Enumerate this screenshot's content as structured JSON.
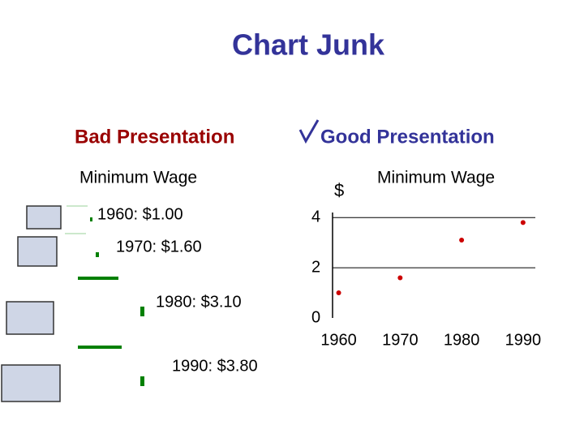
{
  "title": "Chart Junk",
  "bad": {
    "heading": "Bad Presentation",
    "subtitle": "Minimum Wage",
    "items": [
      "1960: $1.00",
      "1970: $1.60",
      "1980: $3.10",
      "1990: $3.80"
    ]
  },
  "good": {
    "heading": "Good Presentation",
    "chart": {
      "type": "scatter",
      "title": "Minimum Wage",
      "y_label": "$",
      "x": [
        1960,
        1970,
        1980,
        1990
      ],
      "values": [
        1.0,
        1.6,
        3.1,
        3.8
      ],
      "color": "#cc0000",
      "xlim": [
        1959,
        1992
      ],
      "ylim": [
        0,
        4.2
      ],
      "xticks": [
        1960,
        1970,
        1980,
        1990
      ],
      "yticks": [
        0,
        2,
        4
      ],
      "grid": true
    }
  }
}
